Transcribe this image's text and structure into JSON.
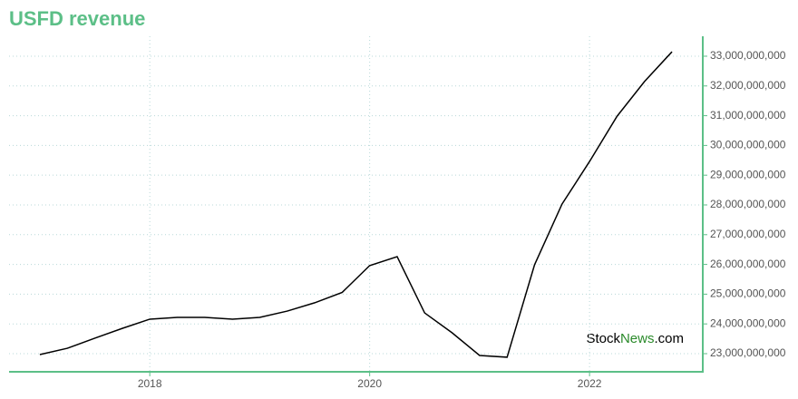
{
  "chart_data": {
    "type": "line",
    "title": "USFD revenue",
    "watermark": [
      "Stock",
      "News",
      ".com"
    ],
    "x": [
      2017.0,
      2017.25,
      2017.5,
      2017.75,
      2018.0,
      2018.25,
      2018.5,
      2018.75,
      2019.0,
      2019.25,
      2019.5,
      2019.75,
      2020.0,
      2020.25,
      2020.5,
      2020.75,
      2021.0,
      2021.25,
      2021.5,
      2021.75,
      2022.0,
      2022.25,
      2022.5,
      2022.75
    ],
    "series": [
      {
        "name": "revenue",
        "color": "#000000",
        "values": [
          22970000000,
          23180000000,
          23520000000,
          23850000000,
          24160000000,
          24220000000,
          24220000000,
          24160000000,
          24220000000,
          24430000000,
          24710000000,
          25060000000,
          25960000000,
          26260000000,
          24370000000,
          23700000000,
          22940000000,
          22880000000,
          25990000000,
          28030000000,
          29460000000,
          30980000000,
          32150000000,
          33150000000
        ]
      }
    ],
    "xlim": [
      2016.72,
      2023.03
    ],
    "xticks": [
      2018,
      2020,
      2022
    ],
    "ylim": [
      22390000000,
      33670000000
    ],
    "yticks": [
      {
        "value": 23000000000,
        "label": "23,000,000,000"
      },
      {
        "value": 24000000000,
        "label": "24,000,000,000"
      },
      {
        "value": 25000000000,
        "label": "25,000,000,000"
      },
      {
        "value": 26000000000,
        "label": "26,000,000,000"
      },
      {
        "value": 27000000000,
        "label": "27,000,000,000"
      },
      {
        "value": 28000000000,
        "label": "28,000,000,000"
      },
      {
        "value": 29000000000,
        "label": "29,000,000,000"
      },
      {
        "value": 30000000000,
        "label": "30,000,000,000"
      },
      {
        "value": 31000000000,
        "label": "31,000,000,000"
      },
      {
        "value": 32000000000,
        "label": "32,000,000,000"
      },
      {
        "value": 33000000000,
        "label": "33,000,000,000"
      }
    ],
    "grid": true,
    "axis_color": "#5cbf87",
    "title_color": "#5cbf87"
  }
}
